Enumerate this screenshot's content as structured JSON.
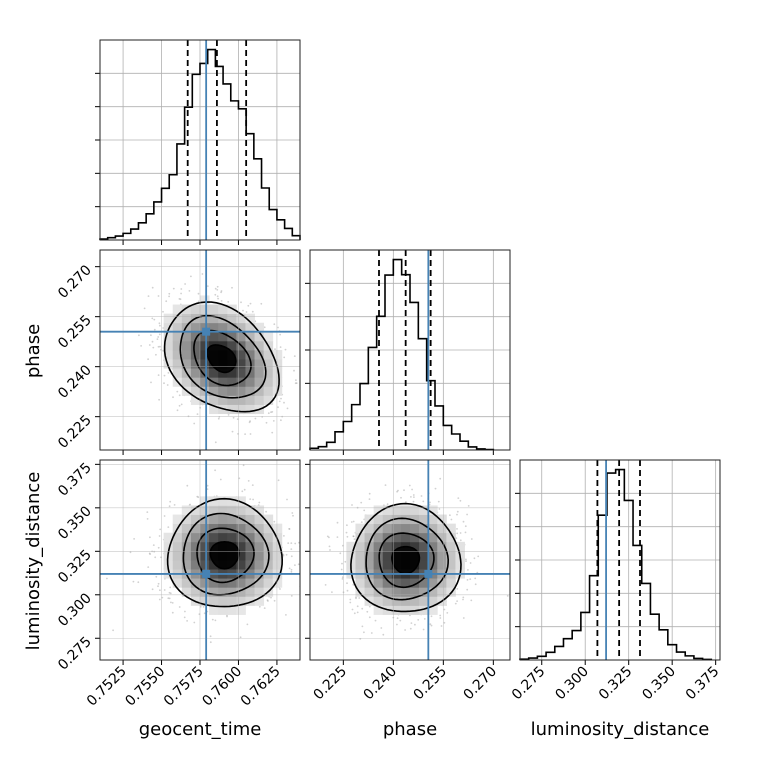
{
  "chart_data": {
    "type": "corner",
    "colors": {
      "truth": "#4682b4",
      "hist": "#000000",
      "grid": "#b0b0b0",
      "scatter": "#9a9a9a",
      "density_scale": [
        "#ffffff",
        "#000000"
      ]
    },
    "parameters": [
      {
        "name": "geocent_time",
        "label": "geocent_time",
        "range": [
          0.751,
          0.764
        ],
        "ticks": [
          0.7525,
          0.755,
          0.7575,
          0.76,
          0.7625
        ],
        "tick_labels": [
          "0.7525",
          "0.7550",
          "0.7575",
          "0.7600",
          "0.7625"
        ],
        "truth": 0.7579,
        "quantiles": [
          0.7567,
          0.7586,
          0.7605
        ],
        "hist_bins": [
          0.751,
          0.7515,
          0.752,
          0.7525,
          0.753,
          0.7535,
          0.754,
          0.7545,
          0.755,
          0.7555,
          0.756,
          0.7565,
          0.757,
          0.7575,
          0.758,
          0.7585,
          0.759,
          0.7595,
          0.76,
          0.7605,
          0.761,
          0.7615,
          0.762,
          0.7625,
          0.763,
          0.7635,
          0.764
        ],
        "hist_counts": [
          0.3,
          0.7,
          1.2,
          2.0,
          3.3,
          5.2,
          7.9,
          11.5,
          15.6,
          19.7,
          29.0,
          40.1,
          50.0,
          53.3,
          57.5,
          52.4,
          47.1,
          42.0,
          39.6,
          32.1,
          24.5,
          15.7,
          9.2,
          6.1,
          3.5,
          1.3
        ]
      },
      {
        "name": "phase",
        "label": "phase",
        "range": [
          0.215,
          0.275
        ],
        "ticks": [
          0.225,
          0.24,
          0.255,
          0.27
        ],
        "tick_labels": [
          "0.225",
          "0.240",
          "0.255",
          "0.270"
        ],
        "truth": 0.2505,
        "quantiles": [
          0.2357,
          0.2437,
          0.2512
        ],
        "hist_bins": [
          0.215,
          0.2175,
          0.22,
          0.2225,
          0.225,
          0.2275,
          0.23,
          0.2325,
          0.235,
          0.2375,
          0.24,
          0.2425,
          0.245,
          0.2475,
          0.25,
          0.2525,
          0.255,
          0.2575,
          0.26,
          0.2625,
          0.265,
          0.2675,
          0.27
        ],
        "hist_counts": [
          0.8,
          1.5,
          3.5,
          8.3,
          13.0,
          20.7,
          30.3,
          46.8,
          61.0,
          79.8,
          86.9,
          80.0,
          67.3,
          50.8,
          31.6,
          20.1,
          11.2,
          7.3,
          4.0,
          1.4,
          0.5,
          0.2
        ]
      },
      {
        "name": "luminosity_distance",
        "label": "luminosity_distance",
        "range": [
          0.2625,
          0.3775
        ],
        "ticks": [
          0.275,
          0.3,
          0.325,
          0.35,
          0.375
        ],
        "tick_labels": [
          "0.275",
          "0.300",
          "0.325",
          "0.350",
          "0.375"
        ],
        "truth": 0.312,
        "quantiles": [
          0.307,
          0.3195,
          0.3315
        ],
        "hist_bins": [
          0.2625,
          0.2675,
          0.2725,
          0.2775,
          0.2825,
          0.2875,
          0.2925,
          0.2975,
          0.3025,
          0.3075,
          0.3125,
          0.3175,
          0.3225,
          0.3275,
          0.3325,
          0.3375,
          0.3425,
          0.3475,
          0.3525,
          0.3575,
          0.3625,
          0.3675,
          0.3725
        ],
        "hist_counts": [
          0.5,
          1.2,
          2.3,
          4.8,
          8.5,
          13.4,
          18.5,
          29.9,
          53.0,
          91.0,
          117.5,
          119.7,
          100.3,
          72.0,
          48.1,
          28.8,
          19.0,
          9.6,
          5.0,
          2.6,
          1.0,
          0.4
        ]
      }
    ],
    "pair_summaries": [
      {
        "x": "geocent_time",
        "y": "phase",
        "mode": [
          0.7589,
          0.2425
        ],
        "std_x": 0.00185,
        "std_y": 0.0082,
        "correlation": -0.3
      },
      {
        "x": "geocent_time",
        "y": "luminosity_distance",
        "mode": [
          0.7591,
          0.323
        ],
        "std_x": 0.00185,
        "std_y": 0.0155,
        "correlation": 0.0
      },
      {
        "x": "phase",
        "y": "luminosity_distance",
        "mode": [
          0.2437,
          0.3202
        ],
        "std_x": 0.0082,
        "std_y": 0.0155,
        "correlation": 0.0
      }
    ],
    "contour_levels_sigma": [
      0.5,
      1.0,
      1.5,
      2.0
    ],
    "grid": true
  }
}
